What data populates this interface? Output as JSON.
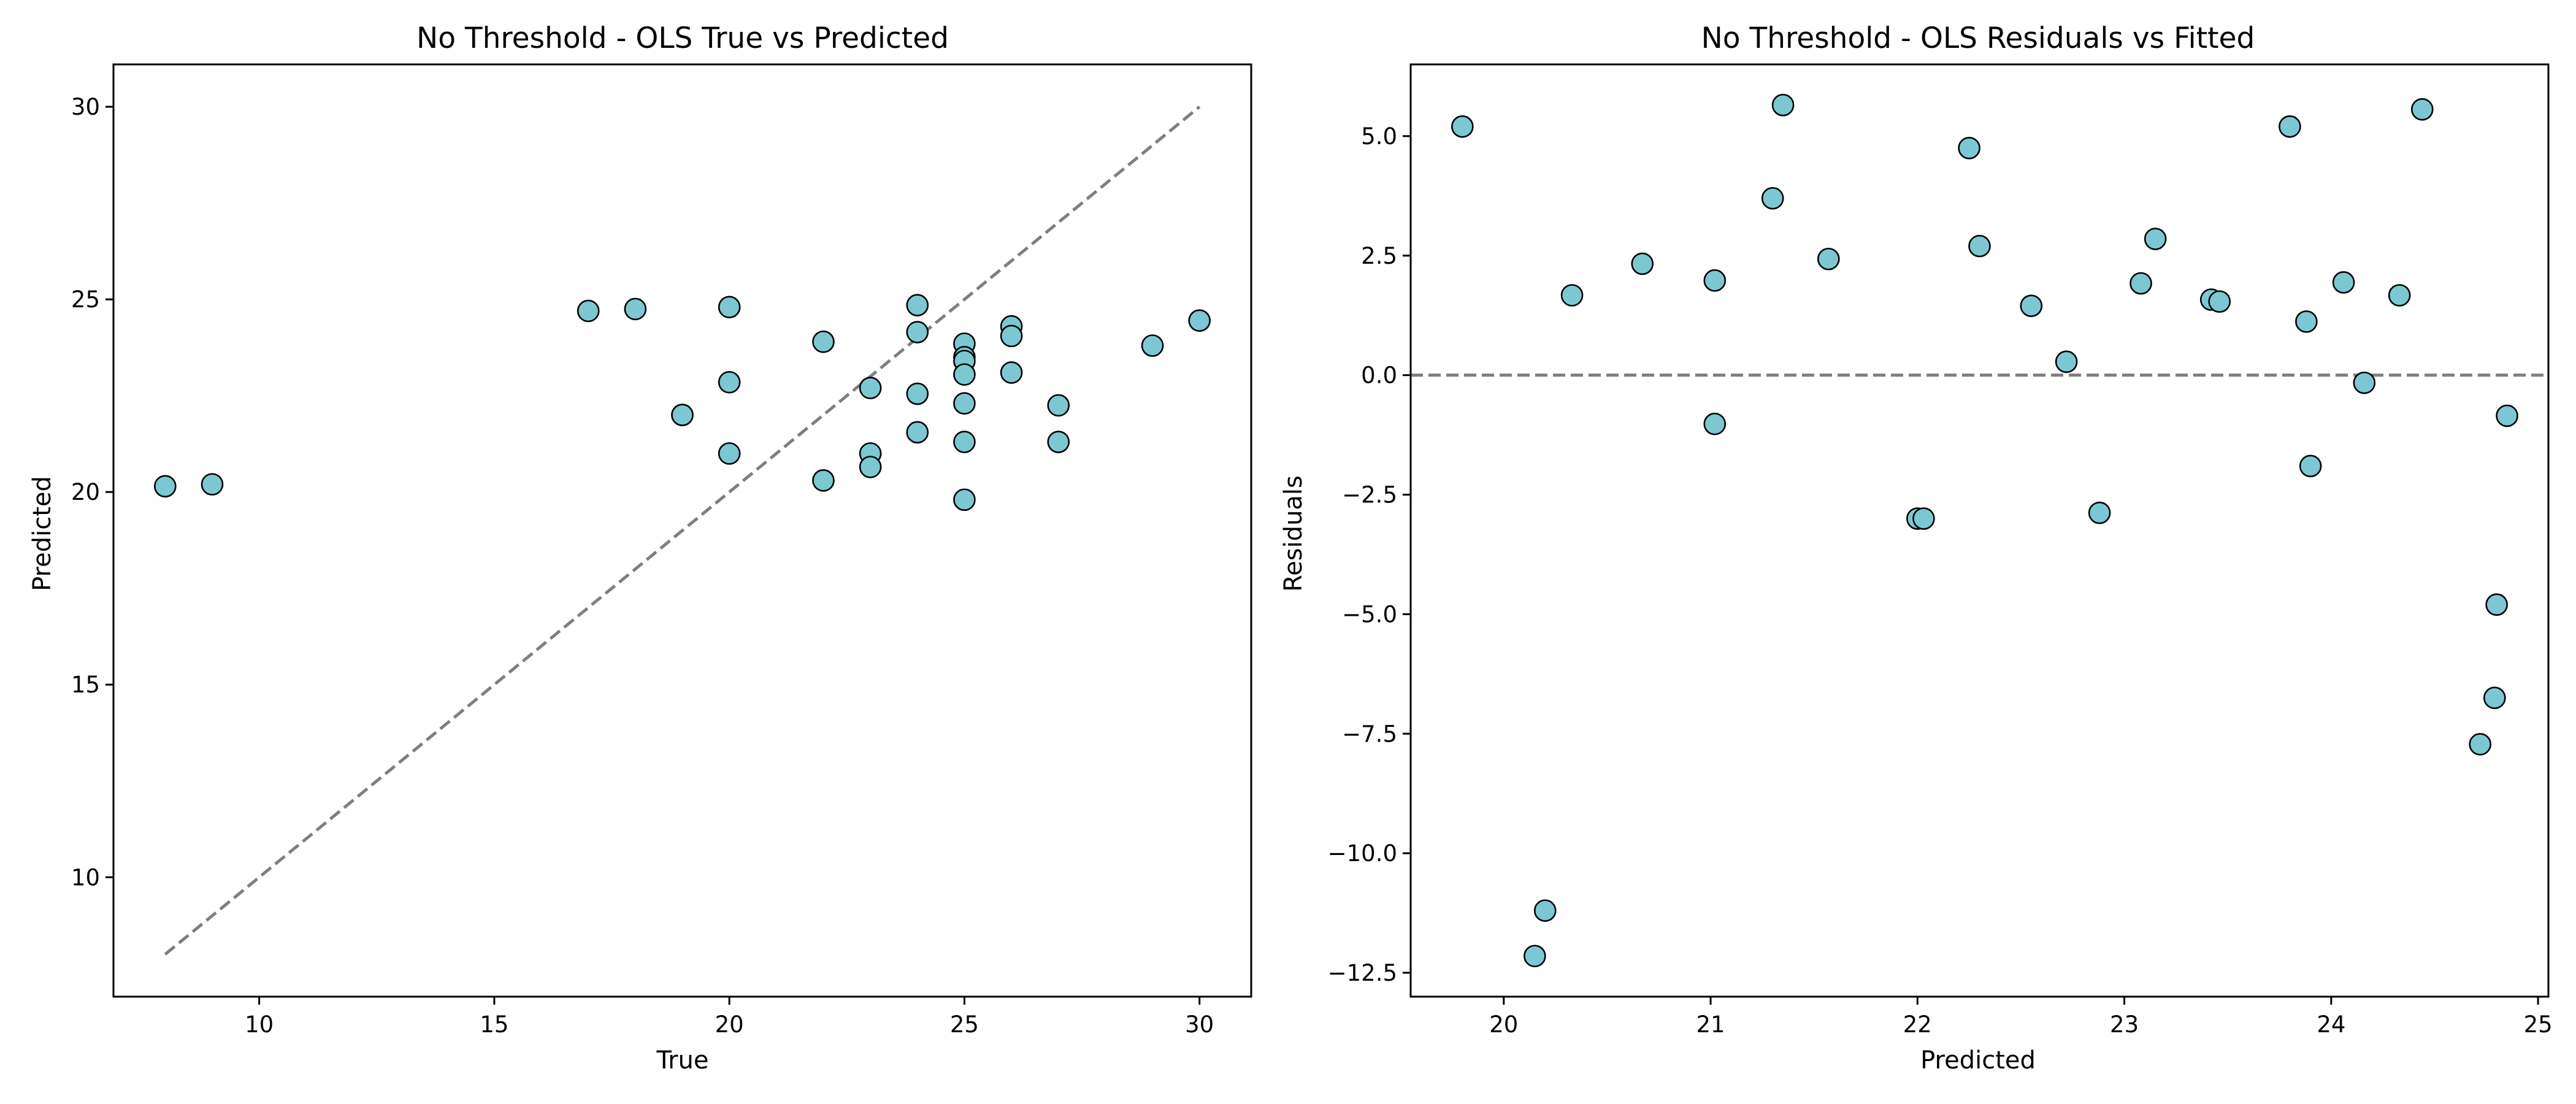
{
  "colors": {
    "marker_fill": "#7cc8d2",
    "marker_edge": "#000000",
    "reference_line": "#7f7f7f",
    "axes": "#000000",
    "background": "#ffffff"
  },
  "chart_data": [
    {
      "type": "scatter",
      "title": "No Threshold - OLS True vs Predicted",
      "xlabel": "True",
      "ylabel": "Predicted",
      "xlim": [
        6.9,
        31.1
      ],
      "ylim": [
        6.9,
        31.1
      ],
      "xticks": [
        10,
        15,
        20,
        25,
        30
      ],
      "yticks": [
        10,
        15,
        20,
        25,
        30
      ],
      "grid": false,
      "reference_line": {
        "style": "dashed",
        "from": [
          8,
          8
        ],
        "to": [
          30,
          30
        ],
        "label": "y = x"
      },
      "points": [
        [
          8,
          20.15
        ],
        [
          9,
          20.2
        ],
        [
          17,
          24.7
        ],
        [
          18,
          24.75
        ],
        [
          19,
          22.0
        ],
        [
          19,
          22.0
        ],
        [
          20,
          24.8
        ],
        [
          20,
          22.85
        ],
        [
          20,
          21.0
        ],
        [
          22,
          23.9
        ],
        [
          22,
          20.3
        ],
        [
          23,
          22.7
        ],
        [
          23,
          21.0
        ],
        [
          23,
          20.65
        ],
        [
          24,
          24.85
        ],
        [
          24,
          24.15
        ],
        [
          24,
          22.55
        ],
        [
          24,
          21.55
        ],
        [
          25,
          23.85
        ],
        [
          25,
          23.5
        ],
        [
          25,
          23.4
        ],
        [
          25,
          23.05
        ],
        [
          25,
          22.3
        ],
        [
          25,
          21.3
        ],
        [
          25,
          19.8
        ],
        [
          26,
          24.3
        ],
        [
          26,
          24.05
        ],
        [
          26,
          23.1
        ],
        [
          27,
          22.25
        ],
        [
          27,
          21.3
        ],
        [
          29,
          23.8
        ],
        [
          30,
          24.45
        ]
      ]
    },
    {
      "type": "scatter",
      "title": "No Threshold - OLS Residuals vs Fitted",
      "xlabel": "Predicted",
      "ylabel": "Residuals",
      "xlim": [
        19.55,
        25.05
      ],
      "ylim": [
        -13.0,
        6.5
      ],
      "xticks": [
        20,
        21,
        22,
        23,
        24,
        25
      ],
      "yticks": [
        -12.5,
        -10.0,
        -7.5,
        -5.0,
        -2.5,
        0.0,
        2.5,
        5.0
      ],
      "grid": false,
      "reference_line": {
        "style": "dashed",
        "y": 0,
        "label": "zero residual"
      },
      "points": [
        [
          19.8,
          5.2
        ],
        [
          20.15,
          -12.15
        ],
        [
          20.2,
          -11.2
        ],
        [
          20.33,
          1.67
        ],
        [
          20.67,
          2.33
        ],
        [
          21.02,
          1.98
        ],
        [
          21.02,
          -1.02
        ],
        [
          21.3,
          3.7
        ],
        [
          21.35,
          5.65
        ],
        [
          21.57,
          2.43
        ],
        [
          22.0,
          -3.0
        ],
        [
          22.03,
          -3.0
        ],
        [
          22.25,
          4.75
        ],
        [
          22.3,
          2.7
        ],
        [
          22.55,
          1.45
        ],
        [
          22.72,
          0.28
        ],
        [
          22.88,
          -2.88
        ],
        [
          23.08,
          1.92
        ],
        [
          23.15,
          2.85
        ],
        [
          23.42,
          1.58
        ],
        [
          23.46,
          1.54
        ],
        [
          23.8,
          5.2
        ],
        [
          23.88,
          1.12
        ],
        [
          23.9,
          -1.9
        ],
        [
          24.06,
          1.94
        ],
        [
          24.16,
          -0.16
        ],
        [
          24.33,
          1.67
        ],
        [
          24.44,
          5.56
        ],
        [
          24.72,
          -7.72
        ],
        [
          24.79,
          -6.75
        ],
        [
          24.8,
          -4.8
        ],
        [
          24.85,
          -0.85
        ]
      ]
    }
  ]
}
